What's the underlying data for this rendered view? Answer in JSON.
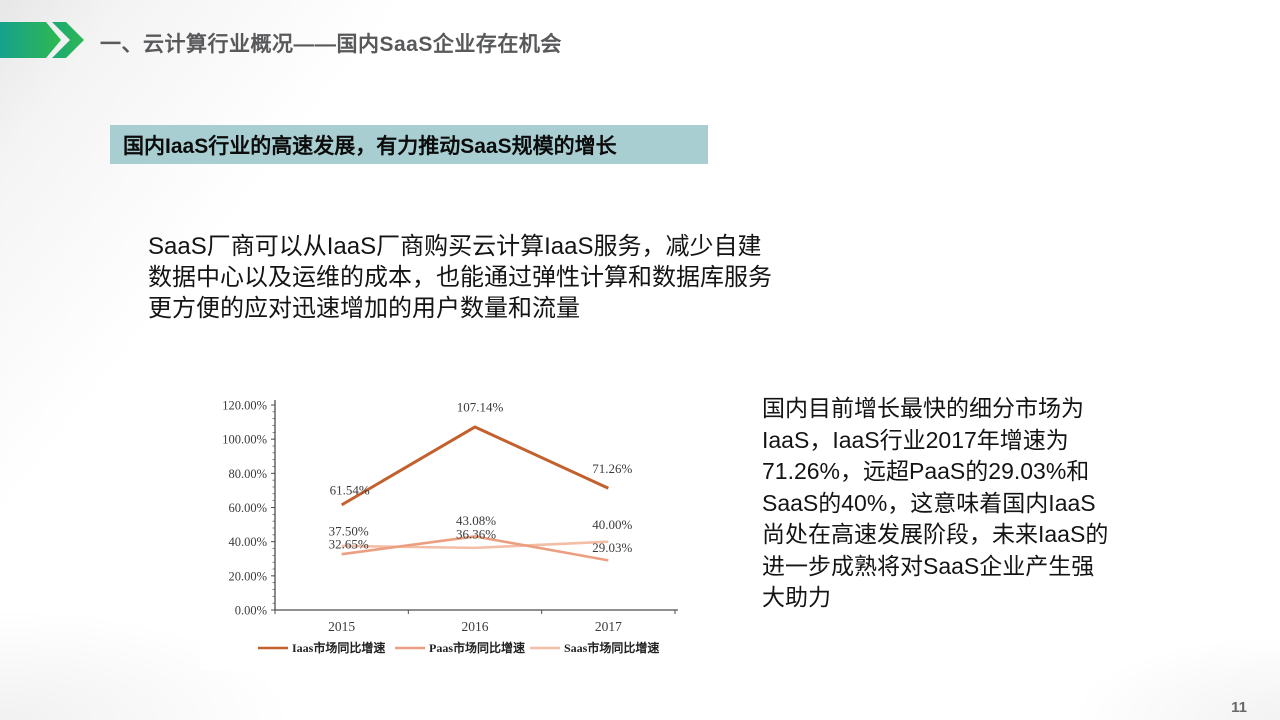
{
  "header": {
    "title": "一、云计算行业概况——国内SaaS企业存在机会"
  },
  "banner": {
    "text": "国内IaaS行业的高速发展，有力推动SaaS规模的增长",
    "bg_color": "#a8ced2"
  },
  "body_paragraph": {
    "text": "SaaS厂商可以从IaaS厂商购买云计算IaaS服务，减少自建\n数据中心以及运维的成本，也能通过弹性计算和数据库服务\n更方便的应对迅速增加的用户数量和流量"
  },
  "right_paragraph": {
    "text": "国内目前增长最快的细分市场为\nIaaS，IaaS行业2017年增速为\n71.26%，远超PaaS的29.03%和\nSaaS的40%，这意味着国内IaaS\n尚处在高速发展阶段，未来IaaS的\n进一步成熟将对SaaS企业产生强\n大助力"
  },
  "footer": {
    "page_number": "11"
  },
  "colors": {
    "accent_teal": "#16a28c",
    "accent_green": "#2eb851",
    "title_gray": "#58595b",
    "axis_gray": "#4d4d4d",
    "label_gray": "#3b3b3b"
  },
  "chart_data": {
    "type": "line",
    "title": "",
    "xlabel": "",
    "ylabel": "",
    "categories": [
      "2015",
      "2016",
      "2017"
    ],
    "series": [
      {
        "name": "Iaas市场同比增速",
        "color": "#c2612e",
        "values": [
          61.54,
          107.14,
          71.26
        ],
        "labels": [
          "61.54%",
          "107.14%",
          "71.26%"
        ]
      },
      {
        "name": "Paas市场同比增速",
        "color": "#eb9f80",
        "values": [
          32.65,
          43.08,
          29.03
        ],
        "labels": [
          "32.65%",
          "43.08%",
          "29.03%"
        ]
      },
      {
        "name": "Saas市场同比增速",
        "color": "#f3bda6",
        "values": [
          37.5,
          36.36,
          40.0
        ],
        "labels": [
          "37.50%",
          "36.36%",
          "40.00%"
        ]
      }
    ],
    "y_ticks": [
      "0.00%",
      "20.00%",
      "40.00%",
      "60.00%",
      "80.00%",
      "100.00%",
      "120.00%"
    ],
    "ylim": [
      0,
      120
    ],
    "y_major_step": 20,
    "y_minor_step": 4,
    "grid": false,
    "legend_position": "bottom",
    "label_offsets": [
      [
        [
          8,
          -15
        ],
        [
          5,
          -20
        ],
        [
          4,
          -20
        ]
      ],
      [
        [
          7,
          -10
        ],
        [
          1,
          -16
        ],
        [
          4,
          -13
        ]
      ],
      [
        [
          7,
          -15
        ],
        [
          1,
          -14
        ],
        [
          4,
          -17
        ]
      ]
    ]
  }
}
